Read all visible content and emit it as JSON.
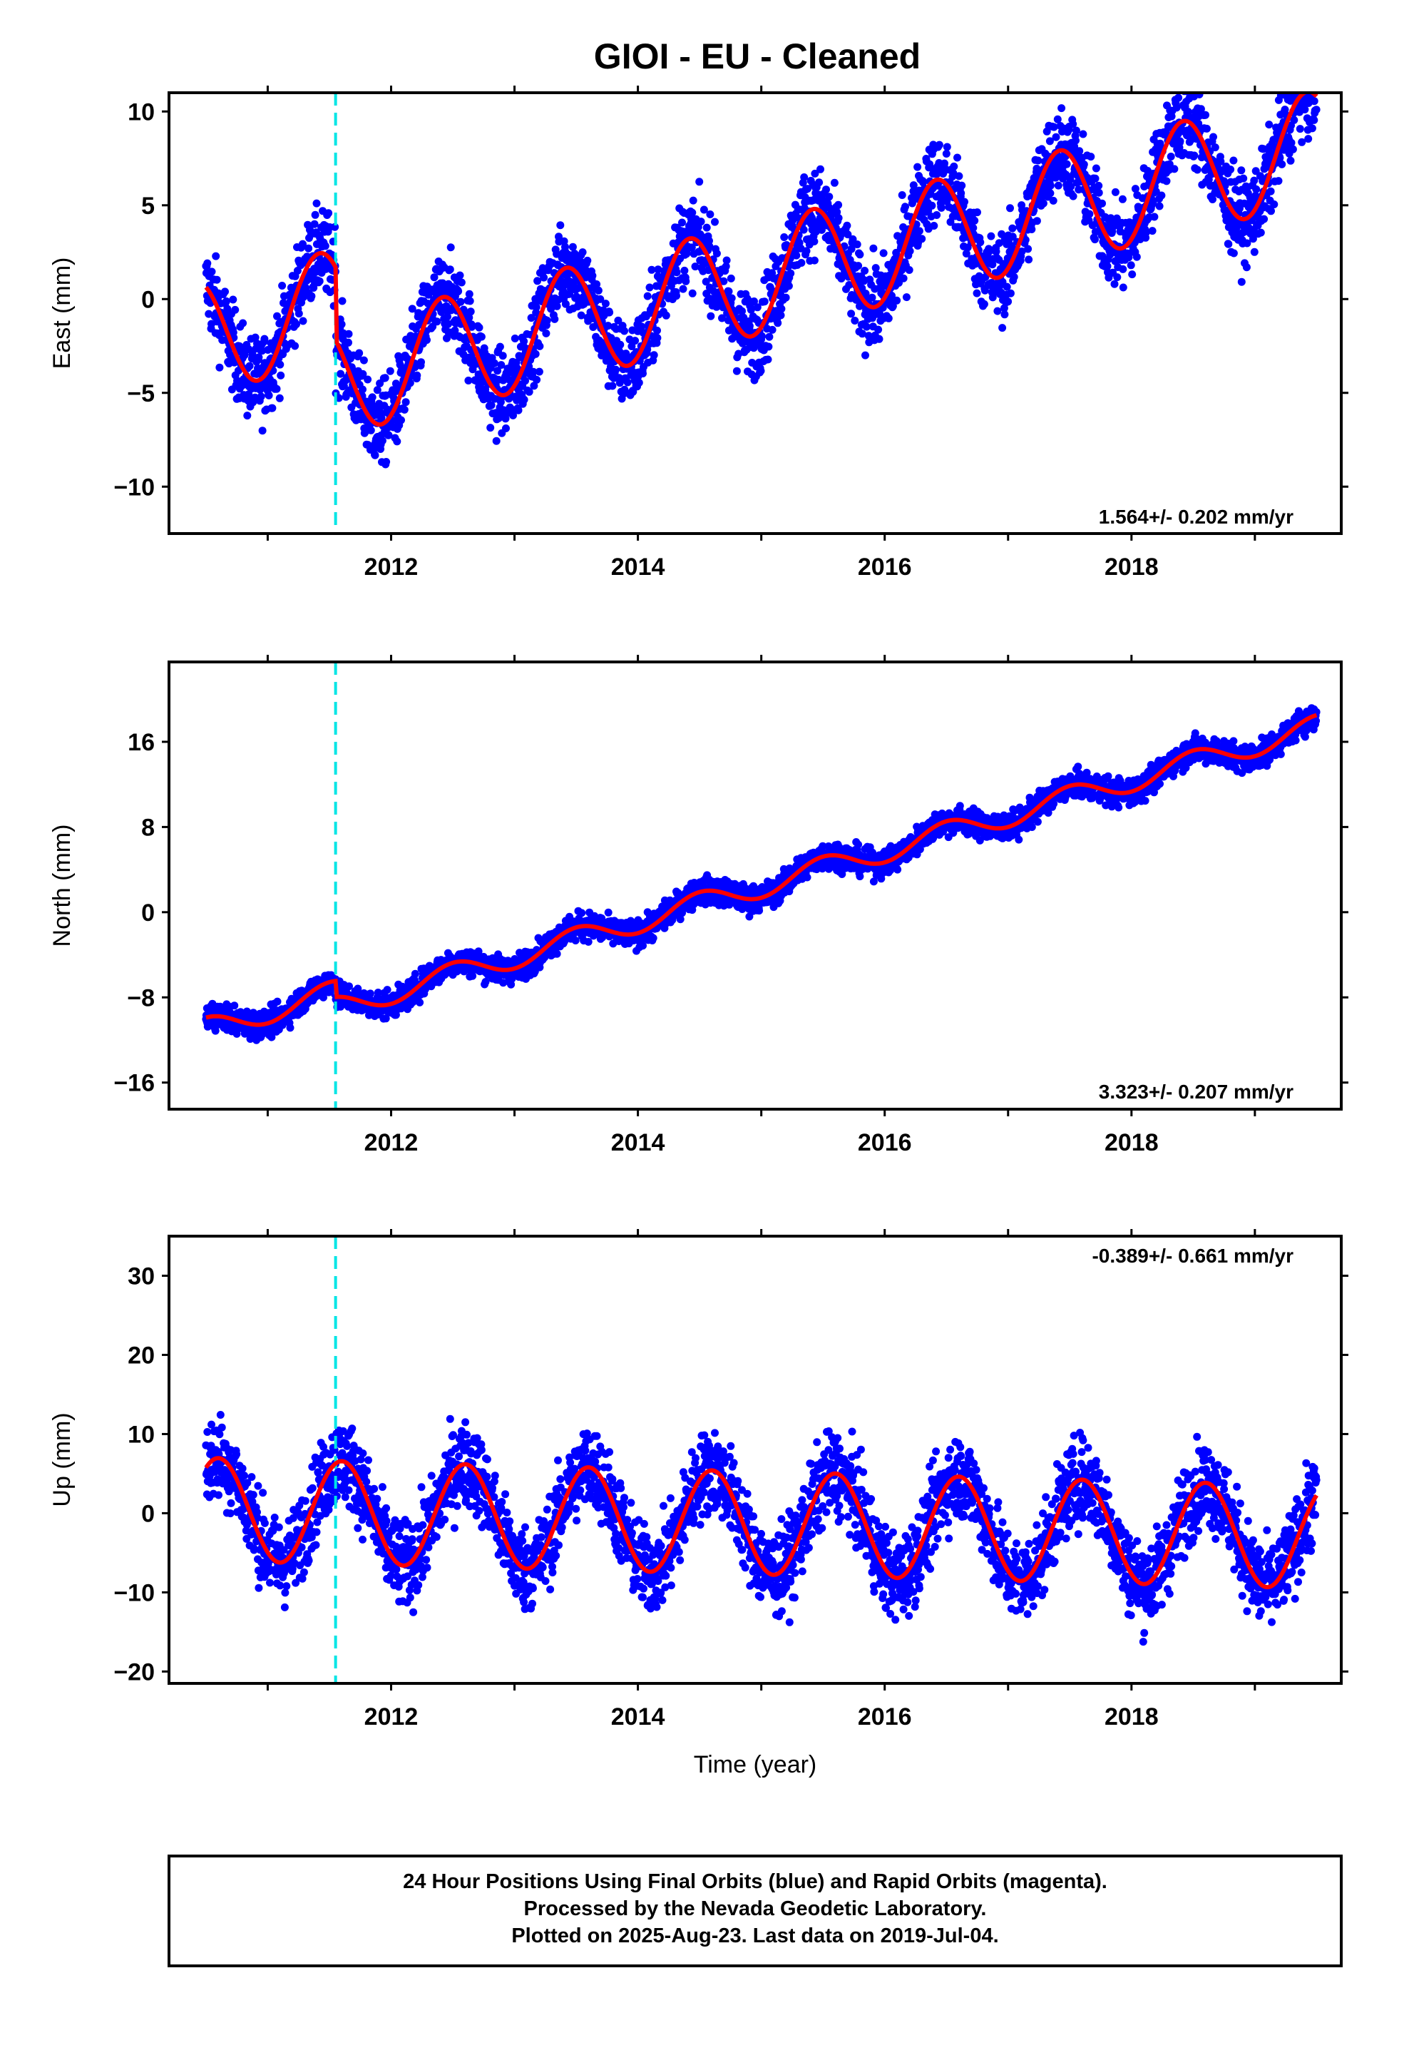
{
  "title": "GIOI  - EU - Cleaned",
  "colors": {
    "data_points": "#0000ff",
    "model_fit": "#ff0000",
    "event_line": "#00e5e5",
    "frame": "#000000"
  },
  "chart_data": [
    {
      "type": "scatter",
      "component": "east",
      "ylabel": "East (mm)",
      "xlabel": "",
      "xlim": [
        2010.2,
        2019.7
      ],
      "ylim": [
        -12.5,
        11
      ],
      "yticks": [
        10,
        5,
        0,
        -5,
        -10
      ],
      "xticks": [
        2012,
        2014,
        2016,
        2018
      ],
      "rate_text": "1.564+/- 0.202 mm/yr",
      "event_line_x": 2011.55,
      "model": {
        "rate": 1.564,
        "amplitude": 3.0,
        "phase_peak": 0.42,
        "offset_at_2010_5": -2.0,
        "step_at_event": -3.9,
        "end_x": 2019.5,
        "scatter": 1.6,
        "start_x": 2010.5,
        "daily_step": 0.00274
      },
      "series": [
        {
          "name": "Final Orbits",
          "color": "#0000ff"
        },
        {
          "name": "Model fit",
          "color": "#ff0000"
        }
      ]
    },
    {
      "type": "scatter",
      "component": "north",
      "ylabel": "North (mm)",
      "xlabel": "",
      "xlim": [
        2010.2,
        2019.7
      ],
      "ylim": [
        -18.5,
        23.5
      ],
      "yticks": [
        16,
        8,
        0,
        -8,
        -16
      ],
      "xticks": [
        2012,
        2014,
        2016,
        2018
      ],
      "rate_text": "3.323+/- 0.207 mm/yr",
      "event_line_x": 2011.55,
      "model": {
        "rate": 3.323,
        "amplitude": 1.1,
        "phase_peak": 0.5,
        "offset_at_2010_5": -11.0,
        "step_at_event": -1.5,
        "end_x": 2019.5,
        "scatter": 0.9,
        "start_x": 2010.5,
        "daily_step": 0.00274
      },
      "series": [
        {
          "name": "Final Orbits",
          "color": "#0000ff"
        },
        {
          "name": "Model fit",
          "color": "#ff0000"
        }
      ]
    },
    {
      "type": "scatter",
      "component": "up",
      "ylabel": "Up (mm)",
      "xlabel": "Time (year)",
      "xlim": [
        2010.2,
        2019.7
      ],
      "ylim": [
        -21.5,
        35
      ],
      "yticks": [
        30,
        20,
        10,
        0,
        -10,
        -20
      ],
      "xticks": [
        2012,
        2014,
        2016,
        2018
      ],
      "rate_text": "-0.389+/- 0.661 mm/yr",
      "event_line_x": 2011.55,
      "model": {
        "rate": -0.389,
        "amplitude": 6.5,
        "phase_peak": 0.6,
        "offset_at_2010_5": 0.5,
        "step_at_event": 0.0,
        "end_x": 2019.5,
        "scatter": 3.8,
        "start_x": 2010.5,
        "daily_step": 0.00274
      },
      "series": [
        {
          "name": "Final Orbits",
          "color": "#0000ff"
        },
        {
          "name": "Model fit",
          "color": "#ff0000"
        }
      ]
    }
  ],
  "footer": {
    "line1": "24 Hour Positions Using Final Orbits (blue) and Rapid Orbits (magenta).",
    "line2": "Processed by the Nevada Geodetic Laboratory.",
    "line3": "Plotted on 2025-Aug-23. Last data on 2019-Jul-04."
  }
}
